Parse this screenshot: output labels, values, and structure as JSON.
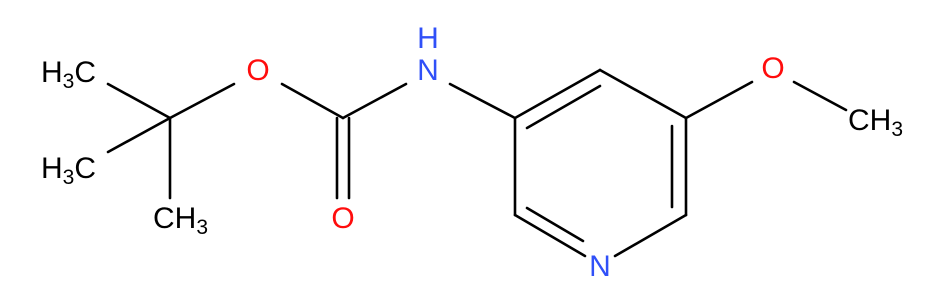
{
  "atoms": [
    {
      "parts": [
        "H",
        "3",
        "C"
      ]
    },
    {
      "parts": [
        "H",
        "3",
        "C"
      ]
    },
    {
      "parts": [
        "C",
        "H",
        "3"
      ]
    },
    {
      "parts": [
        "O"
      ]
    },
    {
      "parts": [
        "O"
      ]
    },
    {
      "parts": [
        "H"
      ]
    },
    {
      "parts": [
        "N"
      ]
    },
    {
      "parts": [
        "N"
      ]
    },
    {
      "parts": [
        "O"
      ]
    },
    {
      "parts": [
        "C",
        "H",
        "3"
      ]
    }
  ]
}
